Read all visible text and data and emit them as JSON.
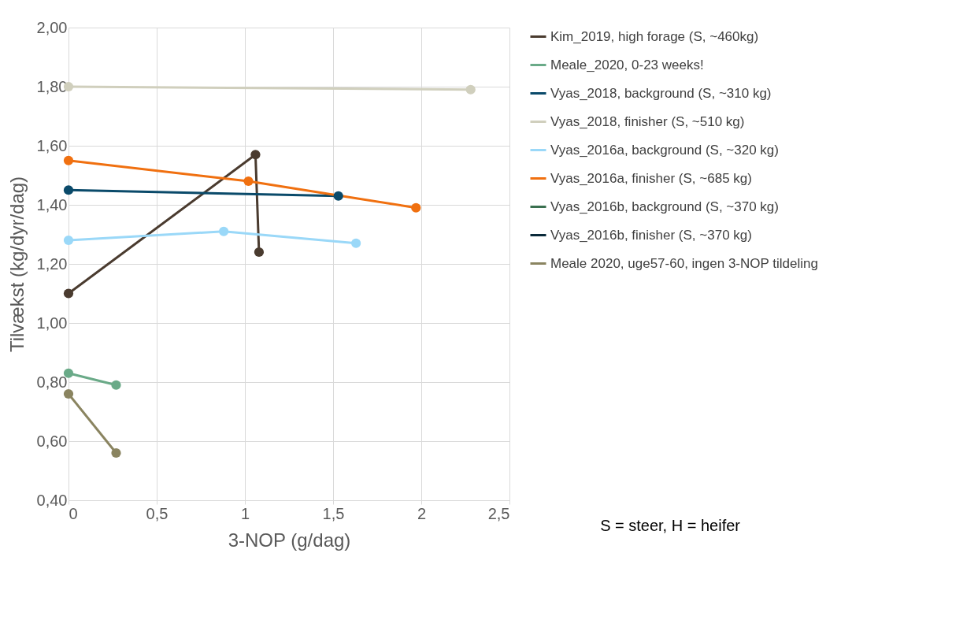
{
  "chart_data": {
    "type": "line",
    "xlabel": "3-NOP (g/dag)",
    "ylabel": "Tilvækst (kg/dyr/dag)",
    "xlim": [
      0,
      2.5
    ],
    "xticks": [
      0,
      {
        "value": 0.5,
        "label": "0,5"
      },
      1,
      {
        "value": 1.5,
        "label": "1,5"
      },
      2,
      {
        "value": 2.5,
        "label": "2,5"
      }
    ],
    "ylim": [
      0.4,
      2.0
    ],
    "yticks": [
      {
        "value": 0.4,
        "label": "0,40"
      },
      {
        "value": 0.6,
        "label": "0,60"
      },
      {
        "value": 0.8,
        "label": "0,80"
      },
      {
        "value": 1.0,
        "label": "1,00"
      },
      {
        "value": 1.2,
        "label": "1,20"
      },
      {
        "value": 1.4,
        "label": "1,40"
      },
      {
        "value": 1.6,
        "label": "1,60"
      },
      {
        "value": 1.8,
        "label": "1,80"
      },
      {
        "value": 2.0,
        "label": "2,00"
      }
    ],
    "grid": true,
    "legend": "right",
    "marker": "circle",
    "line_style": "solid",
    "annotations": [
      "S = steer, H = heifer"
    ],
    "series": [
      {
        "name": "Kim_2019, high forage (S, ~460kg)",
        "color": "#4a3b2f",
        "x": [
          0,
          1.06,
          1.08
        ],
        "values": [
          1.1,
          1.57,
          1.24
        ]
      },
      {
        "name": "Meale_2020, 0-23 weeks!",
        "color": "#6aaa88",
        "x": [
          0,
          0.27
        ],
        "values": [
          0.83,
          0.79
        ]
      },
      {
        "name": "Vyas_2018, background (S, ~310 kg)",
        "color": "#0a4a6a",
        "x": [
          0,
          1.53
        ],
        "values": [
          1.45,
          1.43
        ]
      },
      {
        "name": "Vyas_2018, finisher (S, ~510 kg)",
        "color": "#d0cfbd",
        "x": [
          0,
          2.28
        ],
        "values": [
          1.8,
          1.79
        ]
      },
      {
        "name": "Vyas_2016a, background (S, ~320 kg)",
        "color": "#9ad8f8",
        "x": [
          0,
          0.88,
          1.63
        ],
        "values": [
          1.28,
          1.31,
          1.27
        ]
      },
      {
        "name": "Vyas_2016a, finisher (S, ~685 kg)",
        "color": "#f07010",
        "x": [
          0,
          1.02,
          1.97
        ],
        "values": [
          1.55,
          1.48,
          1.39
        ]
      },
      {
        "name": "Vyas_2016b, background (S, ~370 kg)",
        "color": "#3a7050"
      },
      {
        "name": "Vyas_2016b, finisher (S, ~370 kg)",
        "color": "#0a2a3a"
      },
      {
        "name": "Meale 2020, uge57-60, ingen 3-NOP tildeling",
        "color": "#8a8460",
        "x": [
          0,
          0.27
        ],
        "values": [
          0.76,
          0.56
        ]
      }
    ]
  }
}
